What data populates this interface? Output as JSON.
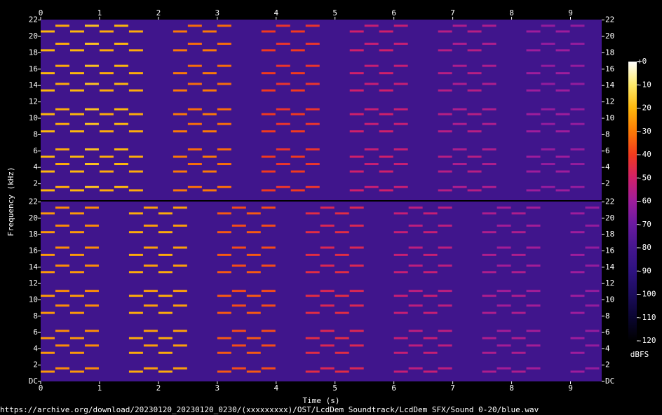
{
  "chart_data": {
    "type": "spectrogram",
    "x_label": "Time (s)",
    "y_label": "Frequency (kHz)",
    "colorbar_label": "dBFS",
    "footer": "https://archive.org/download/20230120_20230120_0230/(xxxxxxxxx)/OST/LcdDem Soundtrack/LcdDem SFX/Sound 0-20/blue.wav",
    "xlim": [
      0,
      9.53
    ],
    "xticks": [
      0,
      1,
      2,
      3,
      4,
      5,
      6,
      7,
      8,
      9
    ],
    "ylim": [
      0,
      22.05
    ],
    "yticks_top": [
      2,
      4,
      6,
      8,
      10,
      12,
      14,
      16,
      18,
      20,
      22
    ],
    "yticks_bottom": [
      {
        "value": 0,
        "label": "DC"
      },
      2,
      4,
      6,
      8,
      10,
      12,
      14,
      16,
      18,
      20,
      22
    ],
    "clim": [
      -120,
      0
    ],
    "cticks": [
      {
        "value": 0,
        "label": "+0"
      },
      -10,
      -20,
      -30,
      -40,
      -50,
      -60,
      -70,
      -80,
      -90,
      -100,
      -110,
      -120
    ],
    "colormap": [
      "#000000",
      "#0a0530",
      "#1c0c5c",
      "#2e1280",
      "#45168f",
      "#6a1aa0",
      "#9e1d9c",
      "#d0206a",
      "#f23a1e",
      "#fb7a06",
      "#fdb70c",
      "#fde96a",
      "#ffffff"
    ],
    "noise_level": -82,
    "harmonics": [
      [
        1.2,
        3.5,
        5.3,
        8.4,
        10.5,
        13.4,
        15.5,
        18.3,
        20.6
      ],
      [
        1.6,
        4.4,
        6.2,
        9.3,
        11.1,
        14.2,
        16.4,
        19.1,
        21.3
      ]
    ],
    "channels": [
      {
        "notes": [
          [
            0,
            0.25,
            -20,
            0
          ],
          [
            0.25,
            0.5,
            -22,
            1
          ],
          [
            0.5,
            0.75,
            -20,
            0
          ],
          [
            0.75,
            1.0,
            -18,
            1
          ],
          [
            1.0,
            1.25,
            -22,
            0
          ],
          [
            1.25,
            1.5,
            -20,
            1
          ],
          [
            1.5,
            1.75,
            -22,
            0
          ],
          [
            2.25,
            2.5,
            -30,
            0
          ],
          [
            2.5,
            2.75,
            -32,
            1
          ],
          [
            2.75,
            3.0,
            -30,
            0
          ],
          [
            3.0,
            3.25,
            -32,
            1
          ],
          [
            3.75,
            4.0,
            -40,
            0
          ],
          [
            4.0,
            4.25,
            -42,
            1
          ],
          [
            4.25,
            4.5,
            -40,
            0
          ],
          [
            4.5,
            4.75,
            -42,
            1
          ],
          [
            5.25,
            5.5,
            -50,
            0
          ],
          [
            5.5,
            5.75,
            -52,
            1
          ],
          [
            5.75,
            6.0,
            -50,
            0
          ],
          [
            6.0,
            6.25,
            -52,
            1
          ],
          [
            6.75,
            7.0,
            -55,
            0
          ],
          [
            7.0,
            7.25,
            -57,
            1
          ],
          [
            7.25,
            7.5,
            -55,
            0
          ],
          [
            7.5,
            7.75,
            -57,
            1
          ],
          [
            8.25,
            8.5,
            -60,
            0
          ],
          [
            8.5,
            8.75,
            -62,
            1
          ],
          [
            8.75,
            9.0,
            -60,
            0
          ],
          [
            9.0,
            9.25,
            -62,
            1
          ]
        ]
      },
      {
        "notes": [
          [
            0,
            0.25,
            -25,
            0
          ],
          [
            0.25,
            0.5,
            -27,
            1
          ],
          [
            0.5,
            0.75,
            -25,
            0
          ],
          [
            0.75,
            1.0,
            -27,
            1
          ],
          [
            1.5,
            1.75,
            -22,
            0
          ],
          [
            1.75,
            2.0,
            -24,
            1
          ],
          [
            2.0,
            2.25,
            -22,
            0
          ],
          [
            2.25,
            2.5,
            -24,
            1
          ],
          [
            3.0,
            3.25,
            -35,
            0
          ],
          [
            3.25,
            3.5,
            -37,
            1
          ],
          [
            3.5,
            3.75,
            -35,
            0
          ],
          [
            3.75,
            4.0,
            -37,
            1
          ],
          [
            4.5,
            4.75,
            -45,
            0
          ],
          [
            4.75,
            5.0,
            -47,
            1
          ],
          [
            5.0,
            5.25,
            -45,
            0
          ],
          [
            5.25,
            5.5,
            -47,
            1
          ],
          [
            6.0,
            6.25,
            -52,
            0
          ],
          [
            6.25,
            6.5,
            -54,
            1
          ],
          [
            6.5,
            6.75,
            -52,
            0
          ],
          [
            6.75,
            7.0,
            -54,
            1
          ],
          [
            7.5,
            7.75,
            -57,
            0
          ],
          [
            7.75,
            8.0,
            -59,
            1
          ],
          [
            8.0,
            8.25,
            -57,
            0
          ],
          [
            8.25,
            8.5,
            -59,
            1
          ],
          [
            9.0,
            9.25,
            -60,
            0
          ],
          [
            9.25,
            9.5,
            -62,
            1
          ]
        ]
      }
    ]
  }
}
